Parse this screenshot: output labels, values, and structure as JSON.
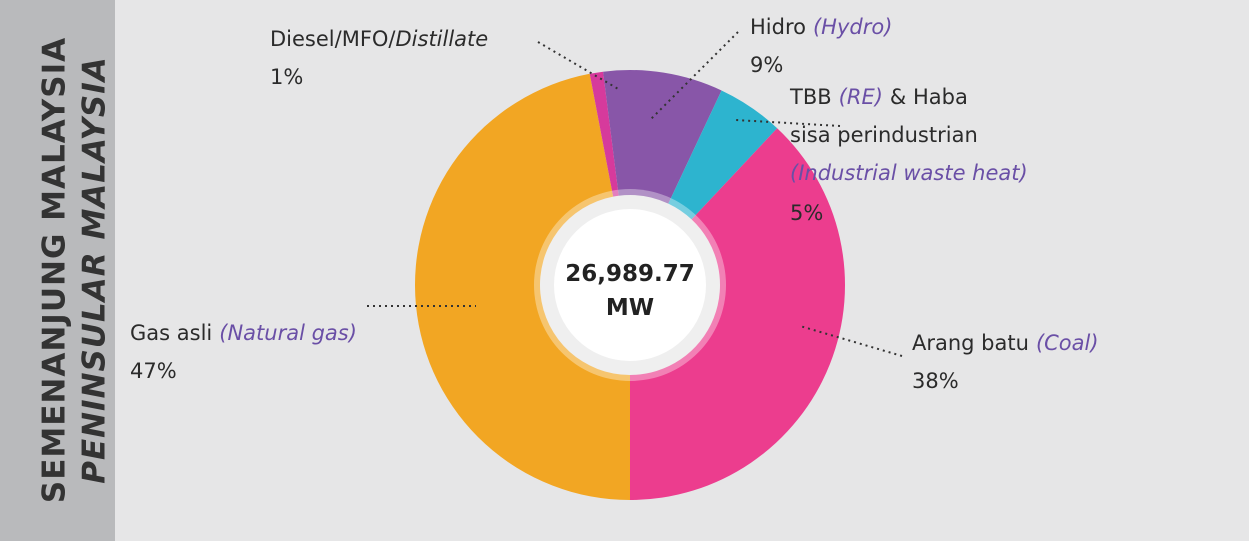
{
  "chart_data": {
    "type": "donut",
    "title": "SEMENANJUNG MALAYSIA",
    "subtitle": "PENINSULAR MALAYSIA",
    "center_text": [
      "26,989.77",
      "MW"
    ],
    "categories": [
      [
        [
          {
            "text": "Gas asli"
          },
          {
            "text": "(Natural gas)",
            "style": "translation"
          }
        ]
      ],
      [
        [
          {
            "text": "Diesel/MFO/"
          },
          {
            "text": "Distillate",
            "style": "italic"
          }
        ]
      ],
      [
        [
          {
            "text": "Hidro"
          },
          {
            "text": "(Hydro)",
            "style": "translation"
          }
        ]
      ],
      [
        [
          {
            "text": "TBB"
          },
          {
            "text": "(RE)",
            "style": "translation"
          },
          {
            "text": "& Haba"
          }
        ],
        [
          {
            "text": "sisa perindustrian"
          }
        ],
        [
          {
            "text": "(Industrial waste heat)",
            "style": "translation"
          }
        ]
      ],
      [
        [
          {
            "text": "Arang batu"
          },
          {
            "text": "(Coal)",
            "style": "translation"
          }
        ]
      ]
    ],
    "values": [
      47,
      1,
      9,
      5,
      38
    ],
    "value_labels": [
      "47%",
      "1%",
      "9%",
      "5%",
      "38%"
    ],
    "colors": [
      "#f2a623",
      "#d63a9c",
      "#8856a8",
      "#2db4cf",
      "#ec3d8e"
    ]
  }
}
